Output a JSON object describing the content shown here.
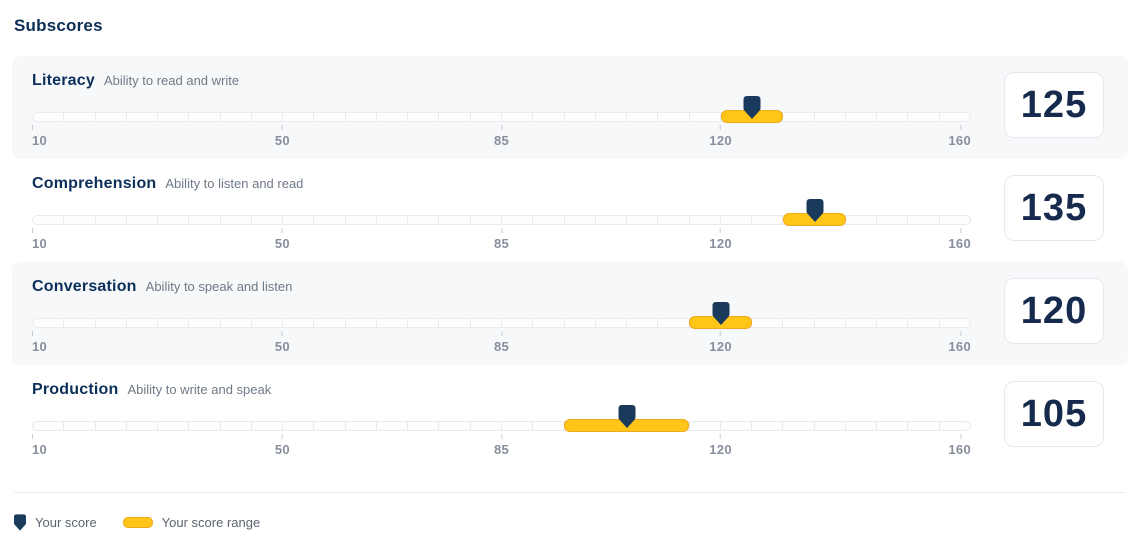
{
  "page_title": "Subscores",
  "scale": {
    "min": 10,
    "max": 160,
    "segments": 30,
    "ticks": [
      10,
      50,
      85,
      120,
      160
    ]
  },
  "subscores": [
    {
      "name": "Literacy",
      "description": "Ability to read and write",
      "score": 125,
      "range_min": 120,
      "range_max": 130
    },
    {
      "name": "Comprehension",
      "description": "Ability to listen and read",
      "score": 135,
      "range_min": 130,
      "range_max": 140
    },
    {
      "name": "Conversation",
      "description": "Ability to speak and listen",
      "score": 120,
      "range_min": 115,
      "range_max": 125
    },
    {
      "name": "Production",
      "description": "Ability to write and speak",
      "score": 105,
      "range_min": 95,
      "range_max": 115
    }
  ],
  "legend": {
    "score_label": "Your score",
    "range_label": "Your score range"
  },
  "colors": {
    "navy": "#14325a",
    "yellow": "#ffc517",
    "yellow_border": "#f2a81c",
    "row_background": "#f6f8fa",
    "track_border": "#e8eaee",
    "tick_label": "#878f9c"
  },
  "chart_data": {
    "type": "bar",
    "orientation": "horizontal",
    "title": "Subscores",
    "categories": [
      "Literacy",
      "Comprehension",
      "Conversation",
      "Production"
    ],
    "series": [
      {
        "name": "Your score",
        "values": [
          125,
          135,
          120,
          105
        ]
      },
      {
        "name": "Your score range (min)",
        "values": [
          120,
          130,
          115,
          95
        ]
      },
      {
        "name": "Your score range (max)",
        "values": [
          130,
          140,
          125,
          115
        ]
      }
    ],
    "xlim": [
      10,
      160
    ],
    "x_ticks": [
      10,
      50,
      85,
      120,
      160
    ],
    "grid": false,
    "legend_position": "bottom"
  }
}
